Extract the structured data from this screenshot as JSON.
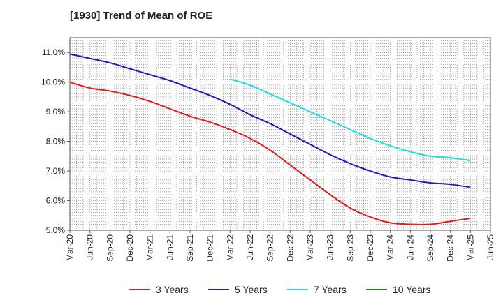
{
  "chart_data": {
    "type": "line",
    "title": "[1930]  Trend of Mean of ROE",
    "xlabel": "",
    "ylabel": "",
    "categories": [
      "Mar-20",
      "Jun-20",
      "Sep-20",
      "Dec-20",
      "Mar-21",
      "Jun-21",
      "Sep-21",
      "Dec-21",
      "Mar-22",
      "Jun-22",
      "Sep-22",
      "Dec-22",
      "Mar-23",
      "Jun-23",
      "Sep-23",
      "Dec-23",
      "Mar-24",
      "Jun-24",
      "Sep-24",
      "Dec-24",
      "Mar-25",
      "Jun-25"
    ],
    "ylim": [
      5.0,
      11.5
    ],
    "yticks": [
      "5.0%",
      "6.0%",
      "7.0%",
      "8.0%",
      "9.0%",
      "10.0%",
      "11.0%"
    ],
    "ytick_values": [
      5.0,
      6.0,
      7.0,
      8.0,
      9.0,
      10.0,
      11.0
    ],
    "grid": true,
    "legend_position": "bottom",
    "series": [
      {
        "name": "3 Years",
        "color": "#e31a1c",
        "values": [
          10.0,
          9.8,
          9.7,
          9.55,
          9.35,
          9.1,
          8.85,
          8.65,
          8.4,
          8.1,
          7.7,
          7.2,
          6.7,
          6.2,
          5.75,
          5.45,
          5.25,
          5.2,
          5.2,
          5.3,
          5.4,
          null
        ]
      },
      {
        "name": "5 Years",
        "color": "#1a1abf",
        "values": [
          10.95,
          10.8,
          10.65,
          10.45,
          10.25,
          10.05,
          9.8,
          9.55,
          9.25,
          8.9,
          8.6,
          8.25,
          7.9,
          7.55,
          7.25,
          7.0,
          6.8,
          6.7,
          6.6,
          6.55,
          6.45,
          null
        ]
      },
      {
        "name": "7 Years",
        "color": "#17e1e8",
        "values": [
          null,
          null,
          null,
          null,
          null,
          null,
          null,
          null,
          10.1,
          9.9,
          9.6,
          9.3,
          9.0,
          8.7,
          8.4,
          8.1,
          7.85,
          7.65,
          7.5,
          7.45,
          7.35,
          null
        ]
      },
      {
        "name": "10 Years",
        "color": "#1f8a1f",
        "values": [
          null,
          null,
          null,
          null,
          null,
          null,
          null,
          null,
          null,
          null,
          null,
          null,
          null,
          null,
          null,
          null,
          null,
          null,
          null,
          null,
          null,
          null
        ]
      }
    ]
  }
}
